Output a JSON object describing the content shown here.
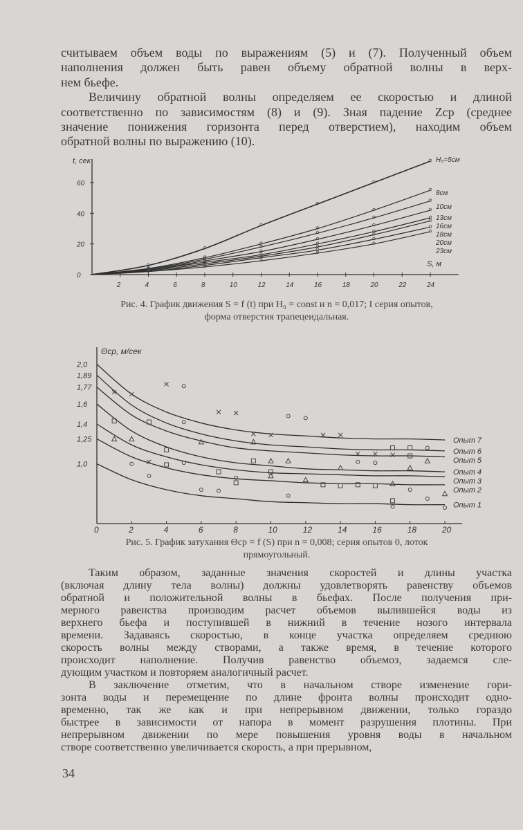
{
  "paragraphs_top": [
    {
      "lines": [
        "считываем объем воды по выражениям (5) и (7). Полученный объем",
        "наполнения должен быть равен объему обратной волны в верх-",
        "нем бьефе."
      ]
    },
    {
      "lines": [
        "Величину обратной волны определяем ее скоростью и длиной",
        "соответственно по зависимостям (8) и (9). Зная падение Zср (среднее",
        "значение понижения горизонта перед отверстием), находим объем",
        "обратной волны по выражению (10)."
      ]
    }
  ],
  "chart_data": [
    {
      "type": "line",
      "caption": [
        "Рис. 4. График движения S = f (t) при H₀ = const и n = 0,017; I серия опытов,",
        "форма отверстия трапецеидальная."
      ],
      "ylabel": "t, сек",
      "xlabel": "S, м",
      "xlim": [
        0,
        26
      ],
      "ylim": [
        0,
        75
      ],
      "x_ticks": [
        2,
        4,
        6,
        8,
        10,
        12,
        14,
        16,
        18,
        20,
        22,
        24
      ],
      "y_ticks": [
        0,
        20,
        40,
        60
      ],
      "x": [
        0,
        4,
        8,
        12,
        16,
        20,
        24
      ],
      "series": [
        {
          "name": "H₀=5см",
          "values": [
            0,
            6,
            17,
            32,
            46,
            60,
            74
          ]
        },
        {
          "name": "8см",
          "values": [
            0,
            4,
            11,
            20,
            30,
            42,
            55
          ]
        },
        {
          "name": "10см",
          "values": [
            0,
            3.5,
            10,
            18,
            27,
            37,
            48
          ]
        },
        {
          "name": "13см",
          "values": [
            0,
            3,
            9,
            15,
            23,
            32,
            42
          ]
        },
        {
          "name": "16см",
          "values": [
            0,
            3,
            8,
            13,
            20,
            28,
            37
          ]
        },
        {
          "name": "18см",
          "values": [
            0,
            2.5,
            7,
            12,
            18,
            26,
            35
          ]
        },
        {
          "name": "20см",
          "values": [
            0,
            2,
            6,
            11,
            16,
            23,
            31
          ]
        },
        {
          "name": "23см",
          "values": [
            0,
            2,
            5,
            9,
            14,
            20,
            28
          ]
        }
      ],
      "grid": false
    },
    {
      "type": "line",
      "caption": [
        "Рис. 5. График затухания Θср = f (S) при n = 0,008; серия опытов 0, лоток",
        "прямоугольный."
      ],
      "ylabel": "Θср, м/сек",
      "xlim": [
        0,
        21
      ],
      "ylim": [
        0.4,
        2.05
      ],
      "x_ticks": [
        0,
        2,
        4,
        6,
        8,
        10,
        12,
        14,
        16,
        18,
        20
      ],
      "y_ticks": [
        {
          "v": 2.0,
          "label": "2,0"
        },
        {
          "v": 1.89,
          "label": "1,89"
        },
        {
          "v": 1.77,
          "label": "1,77"
        },
        {
          "v": 1.6,
          "label": "1,6"
        },
        {
          "v": 1.4,
          "label": "1,4"
        },
        {
          "v": 1.25,
          "label": "1,25"
        },
        {
          "v": 1.0,
          "label": "1,0"
        }
      ],
      "x": [
        0,
        2,
        4,
        6,
        8,
        10,
        12,
        14,
        16,
        18,
        20
      ],
      "series": [
        {
          "name": "Опыт 7",
          "values": [
            2.0,
            1.7,
            1.52,
            1.41,
            1.34,
            1.3,
            1.28,
            1.26,
            1.25,
            1.25,
            1.24
          ]
        },
        {
          "name": "Опыт 6",
          "values": [
            1.89,
            1.59,
            1.41,
            1.3,
            1.23,
            1.19,
            1.17,
            1.15,
            1.14,
            1.14,
            1.13
          ]
        },
        {
          "name": "Опыт 5",
          "values": [
            1.77,
            1.49,
            1.33,
            1.23,
            1.16,
            1.13,
            1.11,
            1.09,
            1.08,
            1.08,
            1.07
          ]
        },
        {
          "name": "Опыт 4",
          "values": [
            1.6,
            1.33,
            1.17,
            1.07,
            1.01,
            0.98,
            0.95,
            0.94,
            0.93,
            0.93,
            0.92
          ]
        },
        {
          "name": "Опыт 3",
          "values": [
            1.4,
            1.19,
            1.07,
            0.99,
            0.94,
            0.91,
            0.9,
            0.89,
            0.88,
            0.88,
            0.87
          ]
        },
        {
          "name": "Опыт 2",
          "values": [
            1.25,
            1.07,
            0.96,
            0.89,
            0.85,
            0.83,
            0.81,
            0.8,
            0.8,
            0.79,
            0.79
          ]
        },
        {
          "name": "Опыт 1",
          "values": [
            1.0,
            0.84,
            0.74,
            0.68,
            0.65,
            0.62,
            0.61,
            0.6,
            0.6,
            0.59,
            0.59
          ]
        }
      ],
      "points": [
        {
          "m": "x",
          "x": 1,
          "y": 1.72
        },
        {
          "m": "x",
          "x": 2,
          "y": 1.7
        },
        {
          "m": "x",
          "x": 4,
          "y": 1.8
        },
        {
          "m": "o",
          "x": 5,
          "y": 1.78
        },
        {
          "m": "x",
          "x": 7,
          "y": 1.52
        },
        {
          "m": "x",
          "x": 8,
          "y": 1.51
        },
        {
          "m": "o",
          "x": 11,
          "y": 1.48
        },
        {
          "m": "o",
          "x": 12,
          "y": 1.46
        },
        {
          "m": "x",
          "x": 9,
          "y": 1.3
        },
        {
          "m": "x",
          "x": 10,
          "y": 1.29
        },
        {
          "m": "x",
          "x": 13,
          "y": 1.29
        },
        {
          "m": "x",
          "x": 14,
          "y": 1.29
        },
        {
          "m": "s",
          "x": 1,
          "y": 1.43
        },
        {
          "m": "s",
          "x": 3,
          "y": 1.42
        },
        {
          "m": "o",
          "x": 5,
          "y": 1.42
        },
        {
          "m": "s",
          "x": 4,
          "y": 1.14
        },
        {
          "m": "t",
          "x": 1,
          "y": 1.25
        },
        {
          "m": "t",
          "x": 2,
          "y": 1.25
        },
        {
          "m": "t",
          "x": 6,
          "y": 1.22
        },
        {
          "m": "t",
          "x": 9,
          "y": 1.22
        },
        {
          "m": "o",
          "x": 2,
          "y": 1.0
        },
        {
          "m": "x",
          "x": 3,
          "y": 1.02
        },
        {
          "m": "s",
          "x": 4,
          "y": 0.99
        },
        {
          "m": "o",
          "x": 5,
          "y": 1.01
        },
        {
          "m": "s",
          "x": 7,
          "y": 0.92
        },
        {
          "m": "s",
          "x": 9,
          "y": 1.03
        },
        {
          "m": "t",
          "x": 10,
          "y": 1.03
        },
        {
          "m": "t",
          "x": 11,
          "y": 1.03
        },
        {
          "m": "s",
          "x": 10,
          "y": 0.92
        },
        {
          "m": "t",
          "x": 10,
          "y": 0.88
        },
        {
          "m": "o",
          "x": 3,
          "y": 0.88
        },
        {
          "m": "o",
          "x": 8,
          "y": 0.86
        },
        {
          "m": "s",
          "x": 8,
          "y": 0.81
        },
        {
          "m": "o",
          "x": 6,
          "y": 0.74
        },
        {
          "m": "o",
          "x": 7,
          "y": 0.73
        },
        {
          "m": "o",
          "x": 11,
          "y": 0.68
        },
        {
          "m": "t",
          "x": 12,
          "y": 0.84
        },
        {
          "m": "s",
          "x": 13,
          "y": 0.79
        },
        {
          "m": "s",
          "x": 14,
          "y": 0.78
        },
        {
          "m": "s",
          "x": 15,
          "y": 0.79
        },
        {
          "m": "s",
          "x": 16,
          "y": 0.78
        },
        {
          "m": "t",
          "x": 17,
          "y": 0.8
        },
        {
          "m": "o",
          "x": 18,
          "y": 0.74
        },
        {
          "m": "o",
          "x": 19,
          "y": 0.65
        },
        {
          "m": "s",
          "x": 17,
          "y": 0.63
        },
        {
          "m": "o",
          "x": 17,
          "y": 0.57
        },
        {
          "m": "o",
          "x": 20,
          "y": 0.56
        },
        {
          "m": "t",
          "x": 20,
          "y": 0.7
        },
        {
          "m": "s",
          "x": 17,
          "y": 1.16
        },
        {
          "m": "s",
          "x": 18,
          "y": 1.16
        },
        {
          "m": "o",
          "x": 19,
          "y": 1.16
        },
        {
          "m": "x",
          "x": 15,
          "y": 1.1
        },
        {
          "m": "x",
          "x": 16,
          "y": 1.1
        },
        {
          "m": "x",
          "x": 17,
          "y": 1.09
        },
        {
          "m": "s",
          "x": 18,
          "y": 1.08
        },
        {
          "m": "t",
          "x": 19,
          "y": 1.03
        },
        {
          "m": "t",
          "x": 18,
          "y": 0.96
        },
        {
          "m": "t",
          "x": 14,
          "y": 0.96
        },
        {
          "m": "o",
          "x": 15,
          "y": 1.02
        },
        {
          "m": "o",
          "x": 16,
          "y": 1.01
        }
      ],
      "grid": false
    }
  ],
  "paragraphs_bottom": [
    {
      "lines": [
        "Таким образом, заданные значения скоростей и длины участка",
        "(включая длину тела волны) должны удовлетворять равенству объемов",
        "обратной и положительной волны в бьефах. После получения при-",
        "мерного равенства производим расчет объемов вылившейся воды из",
        "верхнего бьефа и поступившей в нижний в течение нозого интервала",
        "времени. Задаваясь скоростью, в конце участка определяем среднюю",
        "скорость волны между створами, а также время, в течение которого",
        "происходит наполнение. Получив равенство объемоз, задаемся сле-",
        "дующим участком и повторяем аналогичный расчет."
      ]
    },
    {
      "lines": [
        "В заключение отметим, что в начальном створе изменение гори-",
        "зонта воды и перемещение по длине фронта волны происходит одно-",
        "временно, так же как и при непрерывном движении, только гораздо",
        "быстрее в зависимости от напора в момент разрушения плотины. При",
        "непрерывном движении по мере повышения уровня воды в начальном",
        "створе соответственно увеличивается скорость, а при прерывном,"
      ]
    }
  ],
  "page_number": "34"
}
